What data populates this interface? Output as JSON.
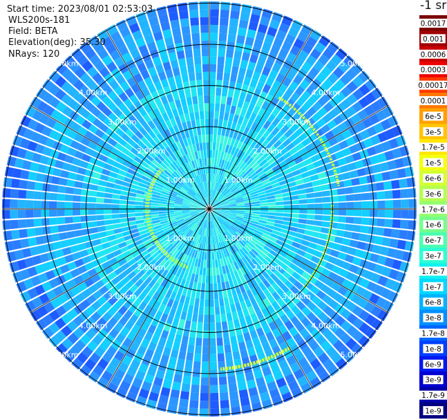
{
  "header": {
    "start_time": "Start time: 2023/08/01 02:53:03",
    "instrument": "WLS200s-181",
    "field": "Field: BETA",
    "elevation": "Elevation(deg): 35.30",
    "nrays": "NRays: 120"
  },
  "ring_labels": [
    "1.00km",
    "2.00km",
    "3.00km",
    "4.00km",
    "5.00km"
  ],
  "colorbar": {
    "unit_label": "-1 sr",
    "ticks": [
      "0.0017",
      "0.001",
      "0.0006",
      "0.0003",
      "0.00017",
      "0.0001",
      "6e-5",
      "3e-5",
      "1.7e-5",
      "1e-5",
      "6e-6",
      "3e-6",
      "1.7e-6",
      "1e-6",
      "6e-7",
      "3e-7",
      "1.7e-7",
      "1e-7",
      "6e-8",
      "3e-8",
      "1.7e-8",
      "1e-8",
      "6e-9",
      "3e-9",
      "1.7e-9",
      "1e-9"
    ],
    "colors": [
      "#7a0000",
      "#a00000",
      "#c80000",
      "#ee0000",
      "#ff3a00",
      "#ff7800",
      "#ffa000",
      "#ffc400",
      "#ffe600",
      "#f2ff10",
      "#d4ff30",
      "#b4ff50",
      "#94ff70",
      "#74ff8c",
      "#4cffb0",
      "#2cffd4",
      "#10f0f0",
      "#00d8ff",
      "#00b4ff",
      "#0090ff",
      "#0066ff",
      "#0040ff",
      "#0018f0",
      "#0000d0",
      "#0000a8",
      "#000080"
    ]
  }
}
